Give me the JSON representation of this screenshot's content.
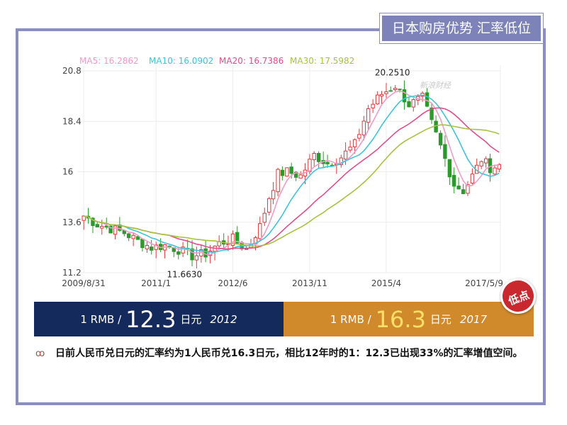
{
  "header": {
    "title": "日本购房优势  汇率低位"
  },
  "watermark": "新浪财经",
  "chart_data": {
    "type": "candlestick",
    "legend": [
      {
        "name": "MA5: 16.2862",
        "color": "#f29ac8"
      },
      {
        "name": "MA10: 16.0902",
        "color": "#3cc4d8"
      },
      {
        "name": "MA20: 16.7386",
        "color": "#e04d8c"
      },
      {
        "name": "MA30: 17.5982",
        "color": "#a7c23c"
      }
    ],
    "y_ticks": [
      "20.8",
      "18.4",
      "16",
      "13.6",
      "11.2"
    ],
    "y_tick_values": [
      20.8,
      18.4,
      16,
      13.6,
      11.2
    ],
    "ylim": [
      11.2,
      20.8
    ],
    "x_ticks": [
      "2009/8/31",
      "2011/1",
      "2012/6",
      "2013/11",
      "2015/4",
      "2017/5/9"
    ],
    "x_tick_dates": [
      "2009-08-31",
      "2011-01-01",
      "2012-06-01",
      "2013-11-01",
      "2015-04-01",
      "2017-05-09"
    ],
    "annotations": [
      {
        "text": "20.2510",
        "value": 20.251,
        "date": "2015-06-01"
      },
      {
        "text": "11.6630",
        "value": 11.663,
        "date": "2011-10-15"
      }
    ],
    "up_color": "#e0383a",
    "down_color": "#2a9a2a",
    "close_series": [
      [
        "2009-09-01",
        13.9
      ],
      [
        "2009-12-01",
        13.5
      ],
      [
        "2010-03-01",
        13.3
      ],
      [
        "2010-06-01",
        13.1
      ],
      [
        "2010-09-01",
        12.7
      ],
      [
        "2010-12-01",
        12.4
      ],
      [
        "2011-03-01",
        12.5
      ],
      [
        "2011-06-01",
        12.3
      ],
      [
        "2011-09-01",
        12.0
      ],
      [
        "2011-12-01",
        12.1
      ],
      [
        "2012-03-01",
        12.6
      ],
      [
        "2012-06-01",
        12.8
      ],
      [
        "2012-09-01",
        12.3
      ],
      [
        "2012-12-01",
        13.4
      ],
      [
        "2013-02-01",
        14.8
      ],
      [
        "2013-04-01",
        15.9
      ],
      [
        "2013-06-01",
        16.0
      ],
      [
        "2013-09-01",
        15.8
      ],
      [
        "2013-12-01",
        16.8
      ],
      [
        "2014-03-01",
        16.4
      ],
      [
        "2014-06-01",
        16.7
      ],
      [
        "2014-09-01",
        17.3
      ],
      [
        "2014-12-01",
        19.0
      ],
      [
        "2015-03-01",
        19.7
      ],
      [
        "2015-06-01",
        20.1
      ],
      [
        "2015-09-01",
        19.2
      ],
      [
        "2015-12-01",
        19.5
      ],
      [
        "2016-02-01",
        18.3
      ],
      [
        "2016-04-01",
        17.2
      ],
      [
        "2016-07-01",
        15.4
      ],
      [
        "2016-09-01",
        15.1
      ],
      [
        "2016-11-01",
        15.8
      ],
      [
        "2017-01-01",
        16.6
      ],
      [
        "2017-03-01",
        16.2
      ],
      [
        "2017-05-01",
        16.3
      ]
    ]
  },
  "strip_left": {
    "prefix": "1 RMB /",
    "value": "12.3",
    "unit": "日元",
    "year": "2012"
  },
  "strip_right": {
    "prefix": "1 RMB /",
    "value": "16.3",
    "unit": "日元",
    "year": "2017"
  },
  "badge": "低点",
  "note": {
    "icon": "ꝏ",
    "text": "日前人民币兑日元的汇率约为1人民币兑16.3日元，相比12年时的1：12.3已出现33%的汇率增值空间。"
  }
}
